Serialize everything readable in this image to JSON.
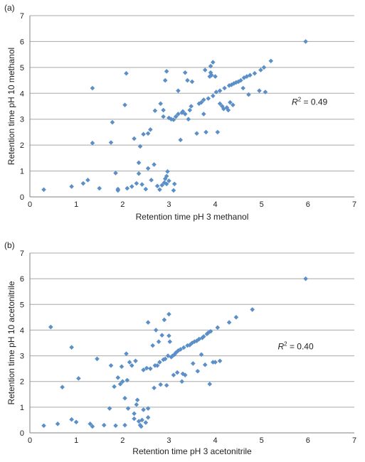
{
  "chart_data": [
    {
      "type": "scatter",
      "panel_label": "(a)",
      "xlabel": "Retention time pH 3 methanol",
      "ylabel": "Retention time pH 10 methanol",
      "xlim": [
        0,
        7
      ],
      "ylim": [
        0,
        7
      ],
      "xticks": [
        "0",
        "1",
        "2",
        "3",
        "4",
        "5",
        "6",
        "7"
      ],
      "yticks": [
        "0",
        "1",
        "2",
        "3",
        "4",
        "5",
        "6",
        "7"
      ],
      "grid": "horizontal",
      "marker_color": "#5b8fc7",
      "annotation": {
        "prefix": "R",
        "sup": "2",
        "suffix": " = 0.49",
        "x": 5.65,
        "y": 3.55
      },
      "points": [
        [
          0.3,
          0.28
        ],
        [
          0.9,
          0.4
        ],
        [
          1.15,
          0.52
        ],
        [
          1.25,
          0.65
        ],
        [
          1.5,
          0.33
        ],
        [
          1.35,
          2.08
        ],
        [
          1.35,
          4.2
        ],
        [
          1.75,
          2.1
        ],
        [
          1.78,
          2.88
        ],
        [
          1.85,
          0.92
        ],
        [
          1.9,
          0.3
        ],
        [
          1.9,
          0.25
        ],
        [
          2.05,
          3.55
        ],
        [
          2.08,
          4.77
        ],
        [
          2.1,
          0.33
        ],
        [
          2.2,
          0.4
        ],
        [
          2.25,
          2.25
        ],
        [
          2.3,
          0.52
        ],
        [
          2.35,
          0.9
        ],
        [
          2.35,
          1.32
        ],
        [
          2.38,
          1.95
        ],
        [
          2.42,
          0.48
        ],
        [
          2.45,
          2.42
        ],
        [
          2.5,
          0.3
        ],
        [
          2.55,
          1.1
        ],
        [
          2.55,
          2.45
        ],
        [
          2.6,
          2.6
        ],
        [
          2.62,
          0.65
        ],
        [
          2.68,
          1.25
        ],
        [
          2.7,
          3.33
        ],
        [
          2.75,
          0.42
        ],
        [
          2.8,
          0.28
        ],
        [
          2.82,
          3.6
        ],
        [
          2.85,
          0.45
        ],
        [
          2.9,
          0.55
        ],
        [
          2.92,
          0.7
        ],
        [
          2.95,
          0.8
        ],
        [
          2.95,
          0.5
        ],
        [
          2.97,
          0.98
        ],
        [
          3.0,
          0.62
        ],
        [
          2.88,
          3.1
        ],
        [
          2.88,
          3.35
        ],
        [
          2.92,
          4.5
        ],
        [
          2.95,
          4.85
        ],
        [
          3.0,
          3.05
        ],
        [
          3.05,
          3.0
        ],
        [
          3.1,
          2.98
        ],
        [
          3.1,
          0.25
        ],
        [
          3.12,
          0.5
        ],
        [
          3.15,
          3.1
        ],
        [
          3.2,
          3.2
        ],
        [
          3.2,
          4.1
        ],
        [
          3.25,
          2.2
        ],
        [
          3.28,
          3.25
        ],
        [
          3.3,
          3.3
        ],
        [
          3.35,
          3.2
        ],
        [
          3.35,
          4.8
        ],
        [
          3.4,
          4.5
        ],
        [
          3.42,
          3.0
        ],
        [
          3.45,
          3.35
        ],
        [
          3.48,
          3.5
        ],
        [
          3.5,
          4.45
        ],
        [
          3.6,
          2.45
        ],
        [
          3.65,
          3.6
        ],
        [
          3.7,
          3.65
        ],
        [
          3.75,
          3.75
        ],
        [
          3.75,
          3.2
        ],
        [
          3.78,
          4.9
        ],
        [
          3.8,
          2.5
        ],
        [
          3.85,
          3.8
        ],
        [
          3.88,
          4.65
        ],
        [
          3.9,
          4.8
        ],
        [
          3.9,
          5.05
        ],
        [
          3.92,
          4.7
        ],
        [
          3.95,
          5.2
        ],
        [
          3.95,
          3.9
        ],
        [
          4.0,
          4.65
        ],
        [
          4.02,
          4.05
        ],
        [
          4.05,
          2.5
        ],
        [
          4.1,
          3.6
        ],
        [
          4.1,
          4.1
        ],
        [
          4.15,
          3.5
        ],
        [
          4.18,
          3.4
        ],
        [
          4.2,
          4.2
        ],
        [
          4.25,
          3.45
        ],
        [
          4.28,
          3.35
        ],
        [
          4.3,
          4.3
        ],
        [
          4.32,
          3.65
        ],
        [
          4.35,
          4.33
        ],
        [
          4.38,
          3.55
        ],
        [
          4.4,
          4.38
        ],
        [
          4.45,
          4.42
        ],
        [
          4.5,
          4.45
        ],
        [
          4.55,
          4.5
        ],
        [
          4.6,
          4.2
        ],
        [
          4.62,
          4.6
        ],
        [
          4.68,
          4.65
        ],
        [
          4.72,
          3.95
        ],
        [
          4.75,
          4.7
        ],
        [
          4.85,
          4.77
        ],
        [
          4.95,
          4.1
        ],
        [
          4.98,
          4.9
        ],
        [
          5.05,
          5.0
        ],
        [
          5.08,
          4.05
        ],
        [
          5.2,
          5.25
        ],
        [
          5.95,
          6.0
        ]
      ]
    },
    {
      "type": "scatter",
      "panel_label": "(b)",
      "xlabel": "Retention time pH 3 acetonitrile",
      "ylabel": "Retention time pH 10 acetonitrile",
      "xlim": [
        0,
        7
      ],
      "ylim": [
        0,
        7
      ],
      "xticks": [
        "0",
        "1",
        "2",
        "3",
        "4",
        "5",
        "6",
        "7"
      ],
      "yticks": [
        "0",
        "1",
        "2",
        "3",
        "4",
        "5",
        "6",
        "7"
      ],
      "grid": "horizontal",
      "marker_color": "#5b8fc7",
      "annotation": {
        "prefix": "R",
        "sup": "2",
        "suffix": " = 0.40",
        "x": 5.35,
        "y": 3.25
      },
      "points": [
        [
          0.3,
          0.28
        ],
        [
          0.45,
          4.12
        ],
        [
          0.6,
          0.35
        ],
        [
          0.7,
          1.78
        ],
        [
          0.9,
          0.52
        ],
        [
          0.9,
          3.33
        ],
        [
          1.0,
          0.42
        ],
        [
          1.05,
          2.12
        ],
        [
          1.3,
          0.35
        ],
        [
          1.35,
          0.25
        ],
        [
          1.45,
          2.88
        ],
        [
          1.6,
          0.3
        ],
        [
          1.72,
          0.95
        ],
        [
          1.75,
          2.62
        ],
        [
          1.82,
          1.8
        ],
        [
          1.85,
          0.28
        ],
        [
          1.9,
          2.15
        ],
        [
          1.95,
          1.9
        ],
        [
          1.98,
          2.58
        ],
        [
          2.0,
          2.0
        ],
        [
          2.05,
          1.35
        ],
        [
          2.05,
          0.3
        ],
        [
          2.08,
          3.08
        ],
        [
          2.1,
          2.05
        ],
        [
          2.12,
          0.95
        ],
        [
          2.15,
          2.75
        ],
        [
          2.2,
          2.62
        ],
        [
          2.25,
          0.75
        ],
        [
          2.25,
          0.55
        ],
        [
          2.28,
          2.8
        ],
        [
          2.3,
          1.1
        ],
        [
          2.32,
          1.28
        ],
        [
          2.35,
          0.45
        ],
        [
          2.38,
          0.3
        ],
        [
          2.4,
          0.25
        ],
        [
          2.42,
          0.5
        ],
        [
          2.45,
          0.9
        ],
        [
          2.45,
          2.45
        ],
        [
          2.5,
          0.4
        ],
        [
          2.52,
          2.52
        ],
        [
          2.55,
          0.6
        ],
        [
          2.55,
          0.95
        ],
        [
          2.55,
          4.3
        ],
        [
          2.6,
          2.5
        ],
        [
          2.65,
          3.4
        ],
        [
          2.68,
          1.75
        ],
        [
          2.7,
          2.62
        ],
        [
          2.72,
          4.0
        ],
        [
          2.75,
          2.62
        ],
        [
          2.78,
          3.55
        ],
        [
          2.8,
          2.75
        ],
        [
          2.82,
          1.88
        ],
        [
          2.85,
          3.8
        ],
        [
          2.88,
          2.85
        ],
        [
          2.9,
          4.4
        ],
        [
          2.92,
          2.88
        ],
        [
          2.95,
          1.85
        ],
        [
          2.98,
          3.0
        ],
        [
          3.0,
          4.62
        ],
        [
          3.0,
          3.78
        ],
        [
          3.02,
          3.55
        ],
        [
          3.05,
          2.95
        ],
        [
          3.08,
          3.0
        ],
        [
          3.1,
          2.25
        ],
        [
          3.12,
          3.05
        ],
        [
          3.15,
          3.12
        ],
        [
          3.18,
          2.35
        ],
        [
          3.2,
          3.2
        ],
        [
          3.25,
          3.25
        ],
        [
          3.28,
          2.0
        ],
        [
          3.3,
          2.3
        ],
        [
          3.32,
          3.32
        ],
        [
          3.35,
          2.25
        ],
        [
          3.4,
          3.4
        ],
        [
          3.45,
          3.42
        ],
        [
          3.5,
          3.5
        ],
        [
          3.52,
          2.7
        ],
        [
          3.55,
          3.55
        ],
        [
          3.6,
          3.58
        ],
        [
          3.62,
          2.4
        ],
        [
          3.65,
          3.65
        ],
        [
          3.7,
          3.05
        ],
        [
          3.72,
          3.7
        ],
        [
          3.75,
          3.75
        ],
        [
          3.78,
          2.65
        ],
        [
          3.82,
          3.85
        ],
        [
          3.85,
          3.9
        ],
        [
          3.88,
          1.9
        ],
        [
          3.9,
          3.95
        ],
        [
          3.95,
          2.75
        ],
        [
          4.0,
          2.75
        ],
        [
          4.05,
          4.1
        ],
        [
          4.1,
          2.8
        ],
        [
          4.3,
          4.3
        ],
        [
          4.45,
          4.5
        ],
        [
          4.8,
          4.8
        ],
        [
          5.95,
          6.0
        ]
      ]
    }
  ]
}
